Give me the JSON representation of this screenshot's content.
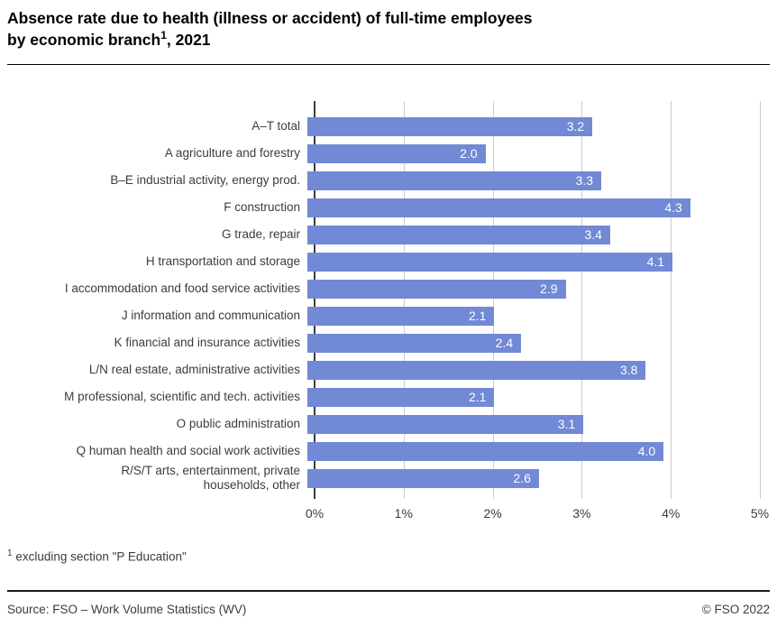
{
  "header": {
    "title_line1": "Absence rate due to health (illness or accident) of full-time employees",
    "title_line2_pre": "by economic branch",
    "title_footnote_marker": "1",
    "title_line2_post": ", 2021"
  },
  "chart_data": {
    "type": "bar",
    "orientation": "horizontal",
    "title": "Absence rate due to health (illness or accident) of full-time employees by economic branch, 2021",
    "categories": [
      "A–T total",
      "A agriculture and forestry",
      "B–E industrial activity, energy prod.",
      "F construction",
      "G trade, repair",
      "H transportation and storage",
      "I accommodation and food service activities",
      "J information and communication",
      "K financial and insurance activities",
      "L/N real estate, administrative activities",
      "M professional, scientific and tech. activities",
      "O public administration",
      "Q human health and social work activities",
      "R/S/T arts, entertainment, private\nhouseholds, other"
    ],
    "values": [
      3.2,
      2.0,
      3.3,
      4.3,
      3.4,
      4.1,
      2.9,
      2.1,
      2.4,
      3.8,
      2.1,
      3.1,
      4.0,
      2.6
    ],
    "value_labels": [
      "3.2",
      "2.0",
      "3.3",
      "4.3",
      "3.4",
      "4.1",
      "2.9",
      "2.1",
      "2.4",
      "3.8",
      "2.1",
      "3.1",
      "4.0",
      "2.6"
    ],
    "xlabel": "",
    "ylabel": "",
    "xlim": [
      0,
      5
    ],
    "x_ticks": [
      "0%",
      "1%",
      "2%",
      "3%",
      "4%",
      "5%"
    ],
    "grid": true,
    "legend": false,
    "colors": {
      "bar": "#7289d5",
      "gridline": "#cccccc",
      "zero_axis": "#3d3d3d",
      "value_label": "#ffffff",
      "category_label": "#3c3c3c"
    }
  },
  "footnote": {
    "marker": "1",
    "text": " excluding section \"P Education\""
  },
  "footer": {
    "source": "Source: FSO – Work Volume Statistics (WV)",
    "copyright": "© FSO 2022"
  }
}
